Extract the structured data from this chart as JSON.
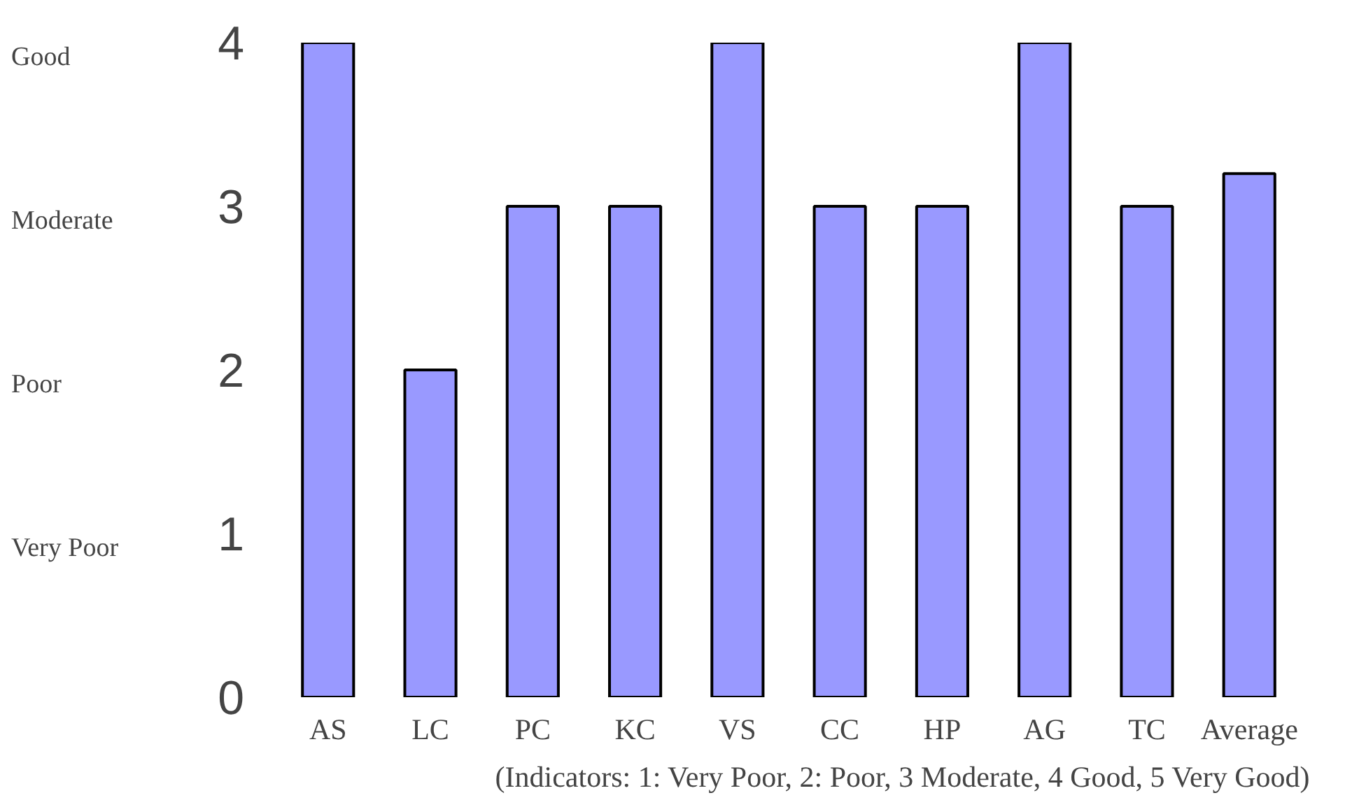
{
  "chart_data": {
    "type": "bar",
    "categories": [
      "AS",
      "LC",
      "PC",
      "KC",
      "VS",
      "CC",
      "HP",
      "AG",
      "TC",
      "Average"
    ],
    "values": [
      4,
      2,
      3,
      3,
      4,
      3,
      3,
      4,
      3,
      3.2
    ],
    "color": "#9999ff",
    "ylim": [
      0,
      4
    ],
    "yticks": [
      0,
      1,
      2,
      3,
      4
    ],
    "grid": false,
    "annotations": [
      "Good",
      "Moderate",
      "Poor",
      "Very Poor",
      "(Indicators: 1: Very Poor, 2: Poor, 3 Moderate, 4 Good, 5 Very Good)"
    ]
  }
}
